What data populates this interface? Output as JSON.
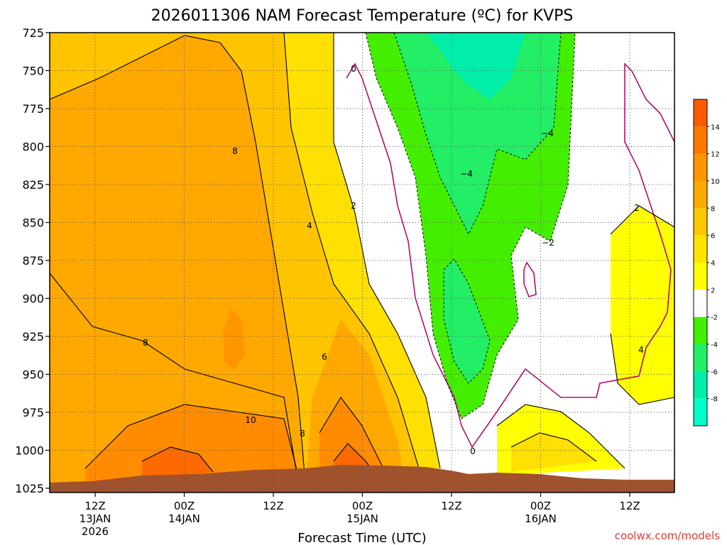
{
  "chart_data": {
    "type": "heatmap",
    "title": "2026011306 NAM Forecast Temperature (ºC) for KVPS",
    "xlabel": "Forecast Time (UTC)",
    "ylabel": "",
    "y_ticks": [
      725,
      750,
      775,
      800,
      825,
      850,
      875,
      900,
      925,
      950,
      975,
      1000,
      1025
    ],
    "ylim": [
      725,
      1025
    ],
    "y_scale": "pressure (inverted)",
    "x_ticks": [
      {
        "line1": "12Z",
        "line2": "13JAN",
        "line3": "2026"
      },
      {
        "line1": "00Z",
        "line2": "14JAN",
        "line3": ""
      },
      {
        "line1": "12Z",
        "line2": "",
        "line3": ""
      },
      {
        "line1": "00Z",
        "line2": "15JAN",
        "line3": ""
      },
      {
        "line1": "12Z",
        "line2": "",
        "line3": ""
      },
      {
        "line1": "00Z",
        "line2": "16JAN",
        "line3": ""
      },
      {
        "line1": "12Z",
        "line2": "",
        "line3": ""
      }
    ],
    "grid": true,
    "colorbar": {
      "position": "right",
      "levels": [
        14,
        12,
        10,
        8,
        6,
        4,
        2,
        -2,
        -4,
        -6,
        -8
      ],
      "colors": [
        "#ff5a00",
        "#ff7800",
        "#ff9600",
        "#ffaa00",
        "#ffc800",
        "#ffe400",
        "#ffff00",
        "#ffffff",
        "#44ee00",
        "#22ee66",
        "#00eeaa",
        "#00ffcc"
      ]
    },
    "contour_labels": [
      "0",
      "8",
      "−4",
      "−4",
      "2",
      "4",
      "2",
      "−2",
      "8",
      "6",
      "4",
      "10",
      "8",
      "0"
    ],
    "terrain_color": "#a0522d"
  },
  "credit": "coolwx.com/models"
}
